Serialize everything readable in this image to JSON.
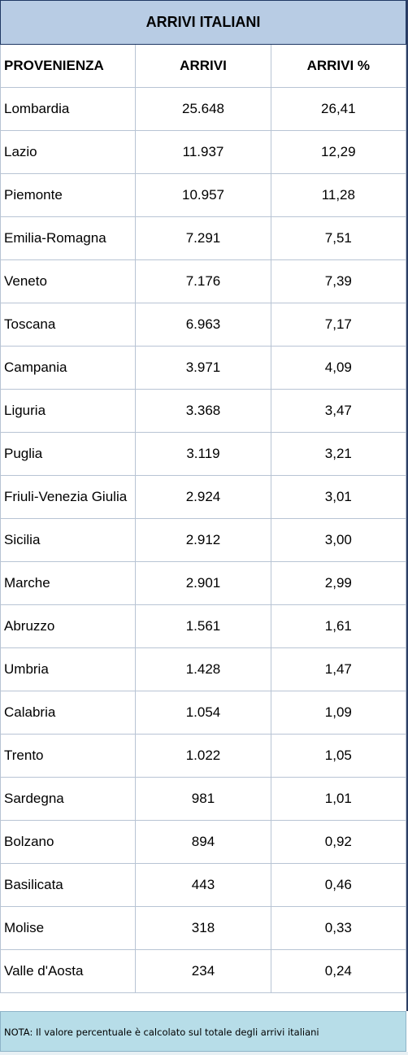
{
  "title": "ARRIVI ITALIANI",
  "headers": [
    "PROVENIENZA",
    "ARRIVI",
    "ARRIVI %"
  ],
  "rows": [
    [
      "Lombardia",
      "25.648",
      "26,41"
    ],
    [
      "Lazio",
      "11.937",
      "12,29"
    ],
    [
      "Piemonte",
      "10.957",
      "11,28"
    ],
    [
      "Emilia-Romagna",
      "7.291",
      "7,51"
    ],
    [
      "Veneto",
      "7.176",
      "7,39"
    ],
    [
      "Toscana",
      "6.963",
      "7,17"
    ],
    [
      "Campania",
      "3.971",
      "4,09"
    ],
    [
      "Liguria",
      "3.368",
      "3,47"
    ],
    [
      "Puglia",
      "3.119",
      "3,21"
    ],
    [
      "Friuli-Venezia Giulia",
      "2.924",
      "3,01"
    ],
    [
      "Sicilia",
      "2.912",
      "3,00"
    ],
    [
      "Marche",
      "2.901",
      "2,99"
    ],
    [
      "Abruzzo",
      "1.561",
      "1,61"
    ],
    [
      "Umbria",
      "1.428",
      "1,47"
    ],
    [
      "Calabria",
      "1.054",
      "1,09"
    ],
    [
      "Trento",
      "1.022",
      "1,05"
    ],
    [
      "Sardegna",
      "981",
      "1,01"
    ],
    [
      "Bolzano",
      "894",
      "0,92"
    ],
    [
      "Basilicata",
      "443",
      "0,46"
    ],
    [
      "Molise",
      "318",
      "0,33"
    ],
    [
      "Valle d'Aosta",
      "234",
      "0,24"
    ]
  ],
  "note": "NOTA: Il valore percentuale è calcolato sul totale degli arrivi italiani"
}
